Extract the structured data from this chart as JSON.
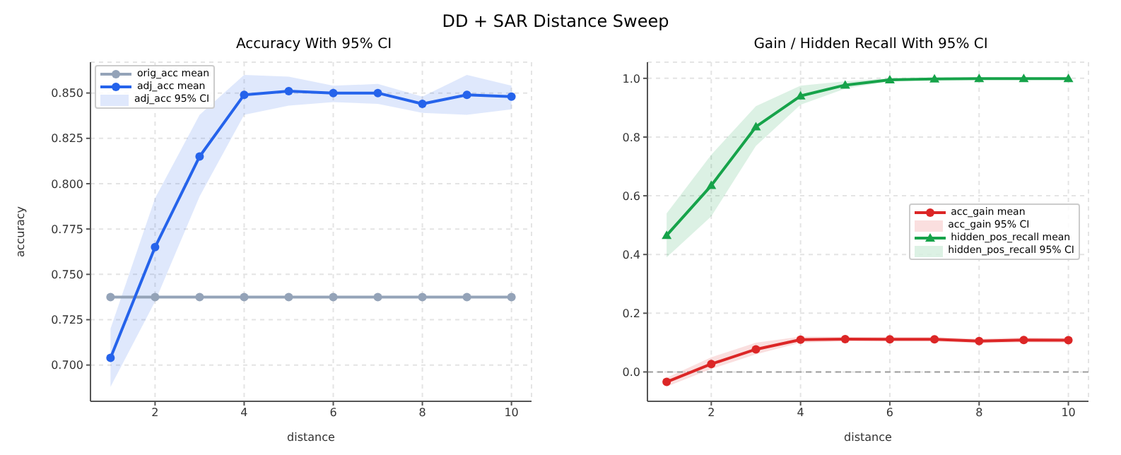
{
  "chart_data": [
    {
      "type": "other",
      "title": "DD + SAR Distance Sweep"
    },
    {
      "type": "line",
      "title": "Accuracy With 95% CI",
      "xlabel": "distance",
      "ylabel": "accuracy",
      "x": [
        1,
        2,
        3,
        4,
        5,
        6,
        7,
        8,
        9,
        10
      ],
      "xlim": [
        0.55,
        10.45
      ],
      "xticks": [
        2,
        4,
        6,
        8,
        10
      ],
      "ylim": [
        0.68,
        0.867
      ],
      "yticks": [
        {
          "value": 0.7,
          "label": "0.700"
        },
        {
          "value": 0.725,
          "label": "0.725"
        },
        {
          "value": 0.75,
          "label": "0.750"
        },
        {
          "value": 0.775,
          "label": "0.775"
        },
        {
          "value": 0.8,
          "label": "0.800"
        },
        {
          "value": 0.825,
          "label": "0.825"
        },
        {
          "value": 0.85,
          "label": "0.850"
        }
      ],
      "grid": true,
      "legend": "top left",
      "annotations": [
        "adj_acc 95% CI"
      ],
      "series": [
        {
          "type": "line",
          "name": "orig_acc mean",
          "color": "#94a3b8",
          "marker": "circle",
          "values": [
            0.7375,
            0.7375,
            0.7375,
            0.7375,
            0.7375,
            0.7375,
            0.7375,
            0.7375,
            0.7375,
            0.7375
          ]
        },
        {
          "type": "line",
          "name": "adj_acc mean",
          "color": "#2563eb",
          "marker": "circle",
          "values": [
            0.704,
            0.765,
            0.815,
            0.849,
            0.851,
            0.85,
            0.85,
            0.844,
            0.849,
            0.848
          ],
          "lower": [
            0.688,
            0.735,
            0.793,
            0.838,
            0.843,
            0.845,
            0.844,
            0.839,
            0.838,
            0.841
          ],
          "upper": [
            0.72,
            0.792,
            0.838,
            0.86,
            0.859,
            0.854,
            0.855,
            0.848,
            0.86,
            0.854
          ]
        }
      ]
    },
    {
      "type": "line",
      "title": "Gain / Hidden Recall With 95% CI",
      "xlabel": "distance",
      "x": [
        1,
        2,
        3,
        4,
        5,
        6,
        7,
        8,
        9,
        10
      ],
      "xlim": [
        0.57,
        10.45
      ],
      "xticks": [
        2,
        4,
        6,
        8,
        10
      ],
      "ylim": [
        -0.1,
        1.055
      ],
      "yticks": [
        {
          "value": 0,
          "label": "0.0"
        },
        {
          "value": 0.2,
          "label": "0.2"
        },
        {
          "value": 0.4,
          "label": "0.4"
        },
        {
          "value": 0.6,
          "label": "0.6"
        },
        {
          "value": 0.8,
          "label": "0.8"
        },
        {
          "value": 1,
          "label": "1.0"
        }
      ],
      "grid": true,
      "legend": "right",
      "annotations": [
        "acc_gain 95% CI",
        "hidden_pos_recall 95% CI"
      ],
      "ref_lines": [
        {
          "axis": "y",
          "value": 0,
          "color": "#9e9e9e",
          "line_style": "dashed"
        }
      ],
      "series": [
        {
          "type": "line",
          "name": "acc_gain mean",
          "color": "#dc2626",
          "marker": "circle",
          "values": [
            -0.034,
            0.027,
            0.077,
            0.11,
            0.112,
            0.111,
            0.111,
            0.105,
            0.109,
            0.108
          ],
          "lower": [
            -0.05,
            0.01,
            0.06,
            0.1,
            0.104,
            0.104,
            0.104,
            0.098,
            0.101,
            0.1
          ],
          "upper": [
            -0.02,
            0.05,
            0.1,
            0.12,
            0.12,
            0.119,
            0.119,
            0.113,
            0.118,
            0.116
          ]
        },
        {
          "type": "line",
          "name": "hidden_pos_recall mean",
          "color": "#16a34a",
          "marker": "triangle",
          "values": [
            0.465,
            0.635,
            0.835,
            0.94,
            0.977,
            0.995,
            0.998,
            0.999,
            0.999,
            0.999
          ],
          "lower": [
            0.39,
            0.53,
            0.77,
            0.91,
            0.965,
            0.99,
            0.995,
            0.995,
            0.995,
            0.995
          ],
          "upper": [
            0.54,
            0.74,
            0.905,
            0.975,
            0.99,
            1.0,
            1.0,
            1.0,
            1.0,
            1.0
          ]
        }
      ]
    }
  ]
}
